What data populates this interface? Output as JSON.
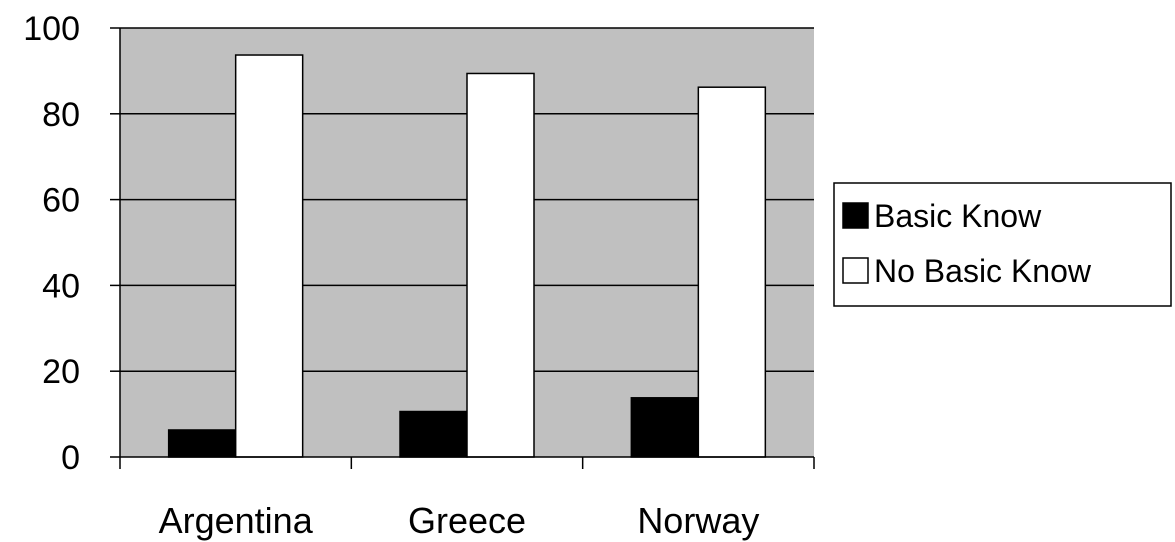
{
  "chart_data": {
    "type": "bar",
    "categories": [
      "Argentina",
      "Greece",
      "Norway"
    ],
    "series": [
      {
        "name": "Basic Know",
        "values": [
          6.3,
          10.6,
          13.8
        ],
        "color": "#000000"
      },
      {
        "name": "No Basic Know",
        "values": [
          93.7,
          89.4,
          86.2
        ],
        "color": "#ffffff"
      }
    ],
    "ylim": [
      0,
      100
    ],
    "yticks": [
      "0",
      "20",
      "40",
      "60",
      "80",
      "100"
    ],
    "title": "",
    "xlabel": "",
    "ylabel": "",
    "grid": true,
    "legend_position": "right",
    "plot_background": "#c0c0c0"
  }
}
